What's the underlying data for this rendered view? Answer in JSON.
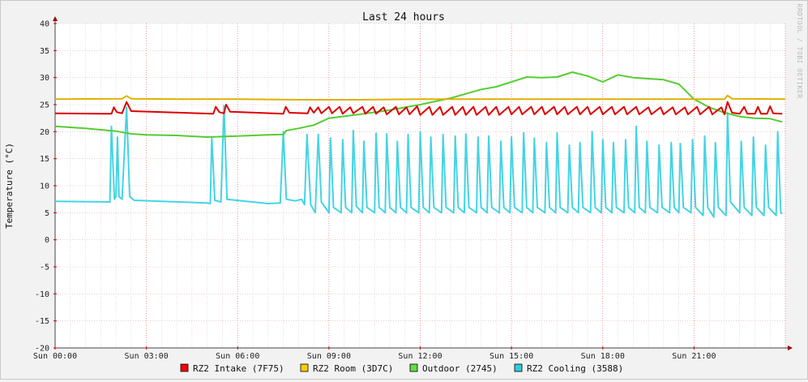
{
  "chart_data": {
    "type": "line",
    "title": "Last 24 hours",
    "ylabel": "Temperature (°C)",
    "xlabel": "",
    "watermark": "RRDTOOL / TOBI OETIKER",
    "ylim": [
      -20,
      40
    ],
    "yticks": [
      "-20",
      "-15",
      "-10",
      "-5",
      "0",
      "5",
      "10",
      "15",
      "20",
      "25",
      "30",
      "35",
      "40"
    ],
    "xlim": [
      0,
      24
    ],
    "xticks": [
      {
        "x": 0,
        "label": "Sun 00:00"
      },
      {
        "x": 3,
        "label": "Sun 03:00"
      },
      {
        "x": 6,
        "label": "Sun 06:00"
      },
      {
        "x": 9,
        "label": "Sun 09:00"
      },
      {
        "x": 12,
        "label": "Sun 12:00"
      },
      {
        "x": 15,
        "label": "Sun 15:00"
      },
      {
        "x": 18,
        "label": "Sun 18:00"
      },
      {
        "x": 21,
        "label": "Sun 21:00"
      }
    ],
    "grid": true,
    "legend_position": "bottom",
    "series": [
      {
        "name": "RZ2 Intake (7F75)",
        "color": "#ff0000",
        "stroke": "#dd0000",
        "points": [
          [
            0,
            23.4
          ],
          [
            1.85,
            23.3
          ],
          [
            1.93,
            24.5
          ],
          [
            2.03,
            23.6
          ],
          [
            2.2,
            23.4
          ],
          [
            2.35,
            25.5
          ],
          [
            2.5,
            23.8
          ],
          [
            5.2,
            23.3
          ],
          [
            5.28,
            24.6
          ],
          [
            5.4,
            23.6
          ],
          [
            5.55,
            23.4
          ],
          [
            5.62,
            25
          ],
          [
            5.75,
            23.7
          ],
          [
            7.5,
            23.3
          ],
          [
            7.58,
            24.6
          ],
          [
            7.7,
            23.5
          ],
          [
            8.3,
            23.4
          ],
          [
            8.38,
            24.5
          ],
          [
            8.5,
            23.5
          ],
          [
            8.65,
            24.5
          ],
          [
            8.75,
            23.4
          ],
          [
            9,
            24.6
          ],
          [
            9.1,
            23.4
          ],
          [
            9.35,
            24.6
          ],
          [
            9.45,
            23.3
          ],
          [
            9.7,
            24.5
          ],
          [
            9.8,
            23.4
          ],
          [
            10.1,
            24.6
          ],
          [
            10.2,
            23.3
          ],
          [
            10.45,
            24.6
          ],
          [
            10.55,
            23.3
          ],
          [
            10.8,
            24.5
          ],
          [
            10.9,
            23.2
          ],
          [
            11.2,
            24.6
          ],
          [
            11.3,
            23.2
          ],
          [
            11.55,
            24.5
          ],
          [
            11.65,
            23.2
          ],
          [
            11.9,
            24.7
          ],
          [
            12,
            23.1
          ],
          [
            12.3,
            24.6
          ],
          [
            12.4,
            23.1
          ],
          [
            12.65,
            24.6
          ],
          [
            12.75,
            23.1
          ],
          [
            13.05,
            24.6
          ],
          [
            13.15,
            23.1
          ],
          [
            13.4,
            24.6
          ],
          [
            13.5,
            23.1
          ],
          [
            13.75,
            24.6
          ],
          [
            13.85,
            23.1
          ],
          [
            14.15,
            24.6
          ],
          [
            14.25,
            23.1
          ],
          [
            14.5,
            24.6
          ],
          [
            14.6,
            23.1
          ],
          [
            14.9,
            24.6
          ],
          [
            15,
            23.2
          ],
          [
            15.25,
            24.6
          ],
          [
            15.35,
            23.2
          ],
          [
            15.65,
            24.6
          ],
          [
            15.75,
            23.2
          ],
          [
            16,
            24.6
          ],
          [
            16.1,
            23.2
          ],
          [
            16.4,
            24.6
          ],
          [
            16.5,
            23.2
          ],
          [
            16.75,
            24.6
          ],
          [
            16.85,
            23.2
          ],
          [
            17.15,
            24.6
          ],
          [
            17.25,
            23.2
          ],
          [
            17.5,
            24.6
          ],
          [
            17.6,
            23.2
          ],
          [
            17.9,
            24.6
          ],
          [
            18,
            23.2
          ],
          [
            18.3,
            24.6
          ],
          [
            18.4,
            23.2
          ],
          [
            18.7,
            24.6
          ],
          [
            18.8,
            23.2
          ],
          [
            19.1,
            24.6
          ],
          [
            19.2,
            23.2
          ],
          [
            19.5,
            24.5
          ],
          [
            19.6,
            23.2
          ],
          [
            19.9,
            24.5
          ],
          [
            20,
            23.2
          ],
          [
            20.3,
            24.5
          ],
          [
            20.4,
            23.2
          ],
          [
            20.7,
            24.5
          ],
          [
            20.8,
            23.2
          ],
          [
            21.1,
            24.6
          ],
          [
            21.2,
            23.2
          ],
          [
            21.5,
            24.6
          ],
          [
            21.6,
            23.2
          ],
          [
            21.9,
            24.5
          ],
          [
            22,
            23.2
          ],
          [
            22.1,
            25.5
          ],
          [
            22.25,
            23.5
          ],
          [
            22.5,
            23.3
          ],
          [
            22.65,
            24.6
          ],
          [
            22.75,
            23.3
          ],
          [
            23.0,
            23.3
          ],
          [
            23.1,
            24.6
          ],
          [
            23.2,
            23.3
          ],
          [
            23.4,
            23.3
          ],
          [
            23.5,
            24.7
          ],
          [
            23.6,
            23.4
          ],
          [
            23.9,
            23.3
          ]
        ]
      },
      {
        "name": "RZ2 Room (3D7C)",
        "color": "#ffcc00",
        "stroke": "#e0b000",
        "points": [
          [
            0,
            26
          ],
          [
            2.2,
            26.1
          ],
          [
            2.35,
            26.6
          ],
          [
            2.5,
            26.1
          ],
          [
            4,
            26
          ],
          [
            6,
            26
          ],
          [
            8,
            25.9
          ],
          [
            10,
            25.9
          ],
          [
            12,
            26
          ],
          [
            14,
            26
          ],
          [
            16,
            26
          ],
          [
            18,
            26
          ],
          [
            20,
            26
          ],
          [
            22.0,
            26
          ],
          [
            22.1,
            26.7
          ],
          [
            22.25,
            26.1
          ],
          [
            24,
            26
          ]
        ]
      },
      {
        "name": "Outdoor (2745)",
        "color": "#66dd44",
        "stroke": "#55cc33",
        "points": [
          [
            0,
            21
          ],
          [
            1,
            20.6
          ],
          [
            2,
            20.1
          ],
          [
            2.5,
            19.6
          ],
          [
            3,
            19.4
          ],
          [
            4,
            19.3
          ],
          [
            5,
            19
          ],
          [
            6,
            19.2
          ],
          [
            7,
            19.4
          ],
          [
            7.5,
            19.5
          ],
          [
            7.6,
            20.2
          ],
          [
            8,
            20.6
          ],
          [
            8.5,
            21.2
          ],
          [
            9,
            22.5
          ],
          [
            10,
            23.2
          ],
          [
            11,
            24
          ],
          [
            12,
            25
          ],
          [
            13,
            26.2
          ],
          [
            13.5,
            27
          ],
          [
            14,
            27.8
          ],
          [
            14.5,
            28.3
          ],
          [
            15,
            29.2
          ],
          [
            15.5,
            30.1
          ],
          [
            16,
            30
          ],
          [
            16.5,
            30.1
          ],
          [
            17,
            31
          ],
          [
            17.5,
            30.3
          ],
          [
            18,
            29.2
          ],
          [
            18.5,
            30.5
          ],
          [
            19,
            30
          ],
          [
            19.5,
            29.8
          ],
          [
            20,
            29.6
          ],
          [
            20.5,
            28.8
          ],
          [
            21,
            26
          ],
          [
            21.5,
            24.5
          ],
          [
            22,
            23.5
          ],
          [
            22.5,
            22.8
          ],
          [
            23,
            22.5
          ],
          [
            23.5,
            22.4
          ],
          [
            23.9,
            21.8
          ]
        ]
      },
      {
        "name": "RZ2 Cooling (3588)",
        "color": "#33ccdd",
        "stroke": "#44d4e4",
        "points": [
          [
            0,
            7.1
          ],
          [
            1.8,
            7
          ],
          [
            1.85,
            21
          ],
          [
            1.95,
            7.5
          ],
          [
            2,
            8
          ],
          [
            2.05,
            19
          ],
          [
            2.1,
            8
          ],
          [
            2.2,
            7.5
          ],
          [
            2.35,
            24.5
          ],
          [
            2.45,
            8
          ],
          [
            2.6,
            7.3
          ],
          [
            5,
            6.8
          ],
          [
            5.1,
            6.7
          ],
          [
            5.15,
            19
          ],
          [
            5.25,
            7.3
          ],
          [
            5.45,
            7
          ],
          [
            5.55,
            24.8
          ],
          [
            5.65,
            7.5
          ],
          [
            7,
            6.7
          ],
          [
            7.4,
            6.8
          ],
          [
            7.5,
            20
          ],
          [
            7.6,
            7.5
          ],
          [
            7.9,
            7.2
          ],
          [
            8.1,
            7.5
          ],
          [
            8.2,
            6.5
          ],
          [
            8.28,
            19.5
          ],
          [
            8.4,
            6.5
          ],
          [
            8.55,
            5
          ],
          [
            8.65,
            19.5
          ],
          [
            8.75,
            7
          ],
          [
            9,
            5
          ],
          [
            9.05,
            18.8
          ],
          [
            9.15,
            6
          ],
          [
            9.4,
            5
          ],
          [
            9.45,
            18.5
          ],
          [
            9.55,
            6
          ],
          [
            9.75,
            5
          ],
          [
            9.8,
            20.2
          ],
          [
            9.9,
            6.2
          ],
          [
            10.1,
            5
          ],
          [
            10.15,
            18.2
          ],
          [
            10.25,
            6
          ],
          [
            10.5,
            5
          ],
          [
            10.55,
            19.7
          ],
          [
            10.65,
            6
          ],
          [
            10.85,
            5
          ],
          [
            10.9,
            19.6
          ],
          [
            11,
            6
          ],
          [
            11.2,
            5
          ],
          [
            11.25,
            18.2
          ],
          [
            11.35,
            6
          ],
          [
            11.55,
            5
          ],
          [
            11.6,
            19.5
          ],
          [
            11.7,
            6
          ],
          [
            11.95,
            5
          ],
          [
            12,
            20
          ],
          [
            12.1,
            6
          ],
          [
            12.3,
            5
          ],
          [
            12.35,
            19
          ],
          [
            12.45,
            6
          ],
          [
            12.7,
            5
          ],
          [
            12.75,
            19.5
          ],
          [
            12.85,
            6
          ],
          [
            13.1,
            5
          ],
          [
            13.15,
            19.2
          ],
          [
            13.25,
            6
          ],
          [
            13.45,
            5
          ],
          [
            13.5,
            19.6
          ],
          [
            13.6,
            6
          ],
          [
            13.85,
            5
          ],
          [
            13.9,
            19
          ],
          [
            14,
            6
          ],
          [
            14.2,
            5
          ],
          [
            14.25,
            19.2
          ],
          [
            14.35,
            6
          ],
          [
            14.6,
            5
          ],
          [
            14.65,
            18.2
          ],
          [
            14.75,
            6
          ],
          [
            14.95,
            5
          ],
          [
            15,
            19
          ],
          [
            15.1,
            6
          ],
          [
            15.35,
            5
          ],
          [
            15.4,
            19.8
          ],
          [
            15.5,
            6
          ],
          [
            15.7,
            5
          ],
          [
            15.75,
            18.8
          ],
          [
            15.85,
            6
          ],
          [
            16.1,
            5
          ],
          [
            16.15,
            18
          ],
          [
            16.25,
            6
          ],
          [
            16.45,
            5
          ],
          [
            16.5,
            19.8
          ],
          [
            16.6,
            6
          ],
          [
            16.85,
            5
          ],
          [
            16.9,
            17.5
          ],
          [
            17,
            6
          ],
          [
            17.2,
            5
          ],
          [
            17.25,
            18
          ],
          [
            17.35,
            6
          ],
          [
            17.6,
            5
          ],
          [
            17.65,
            20
          ],
          [
            17.75,
            6
          ],
          [
            17.95,
            5
          ],
          [
            18,
            18.5
          ],
          [
            18.1,
            6
          ],
          [
            18.3,
            5
          ],
          [
            18.35,
            18
          ],
          [
            18.45,
            6
          ],
          [
            18.7,
            5
          ],
          [
            18.75,
            18.5
          ],
          [
            18.85,
            6
          ],
          [
            19.05,
            5
          ],
          [
            19.1,
            21
          ],
          [
            19.2,
            6
          ],
          [
            19.4,
            5
          ],
          [
            19.45,
            18.2
          ],
          [
            19.55,
            6
          ],
          [
            19.8,
            5
          ],
          [
            19.85,
            17.5
          ],
          [
            19.95,
            6
          ],
          [
            20.2,
            5
          ],
          [
            20.25,
            18
          ],
          [
            20.35,
            6
          ],
          [
            20.5,
            5
          ],
          [
            20.55,
            17.8
          ],
          [
            20.65,
            6
          ],
          [
            20.9,
            5
          ],
          [
            20.95,
            18.5
          ],
          [
            21.05,
            6
          ],
          [
            21.3,
            4.5
          ],
          [
            21.35,
            19.2
          ],
          [
            21.45,
            6
          ],
          [
            21.65,
            4.2
          ],
          [
            21.7,
            18
          ],
          [
            21.8,
            6
          ],
          [
            22.05,
            4.5
          ],
          [
            22.1,
            23.5
          ],
          [
            22.2,
            7
          ],
          [
            22.5,
            5
          ],
          [
            22.55,
            18.2
          ],
          [
            22.65,
            6
          ],
          [
            22.9,
            4.5
          ],
          [
            22.95,
            19
          ],
          [
            23.05,
            6
          ],
          [
            23.3,
            4.5
          ],
          [
            23.35,
            17.5
          ],
          [
            23.45,
            6
          ],
          [
            23.7,
            4.5
          ],
          [
            23.75,
            20
          ],
          [
            23.85,
            5
          ],
          [
            23.9,
            4.8
          ]
        ]
      }
    ]
  }
}
